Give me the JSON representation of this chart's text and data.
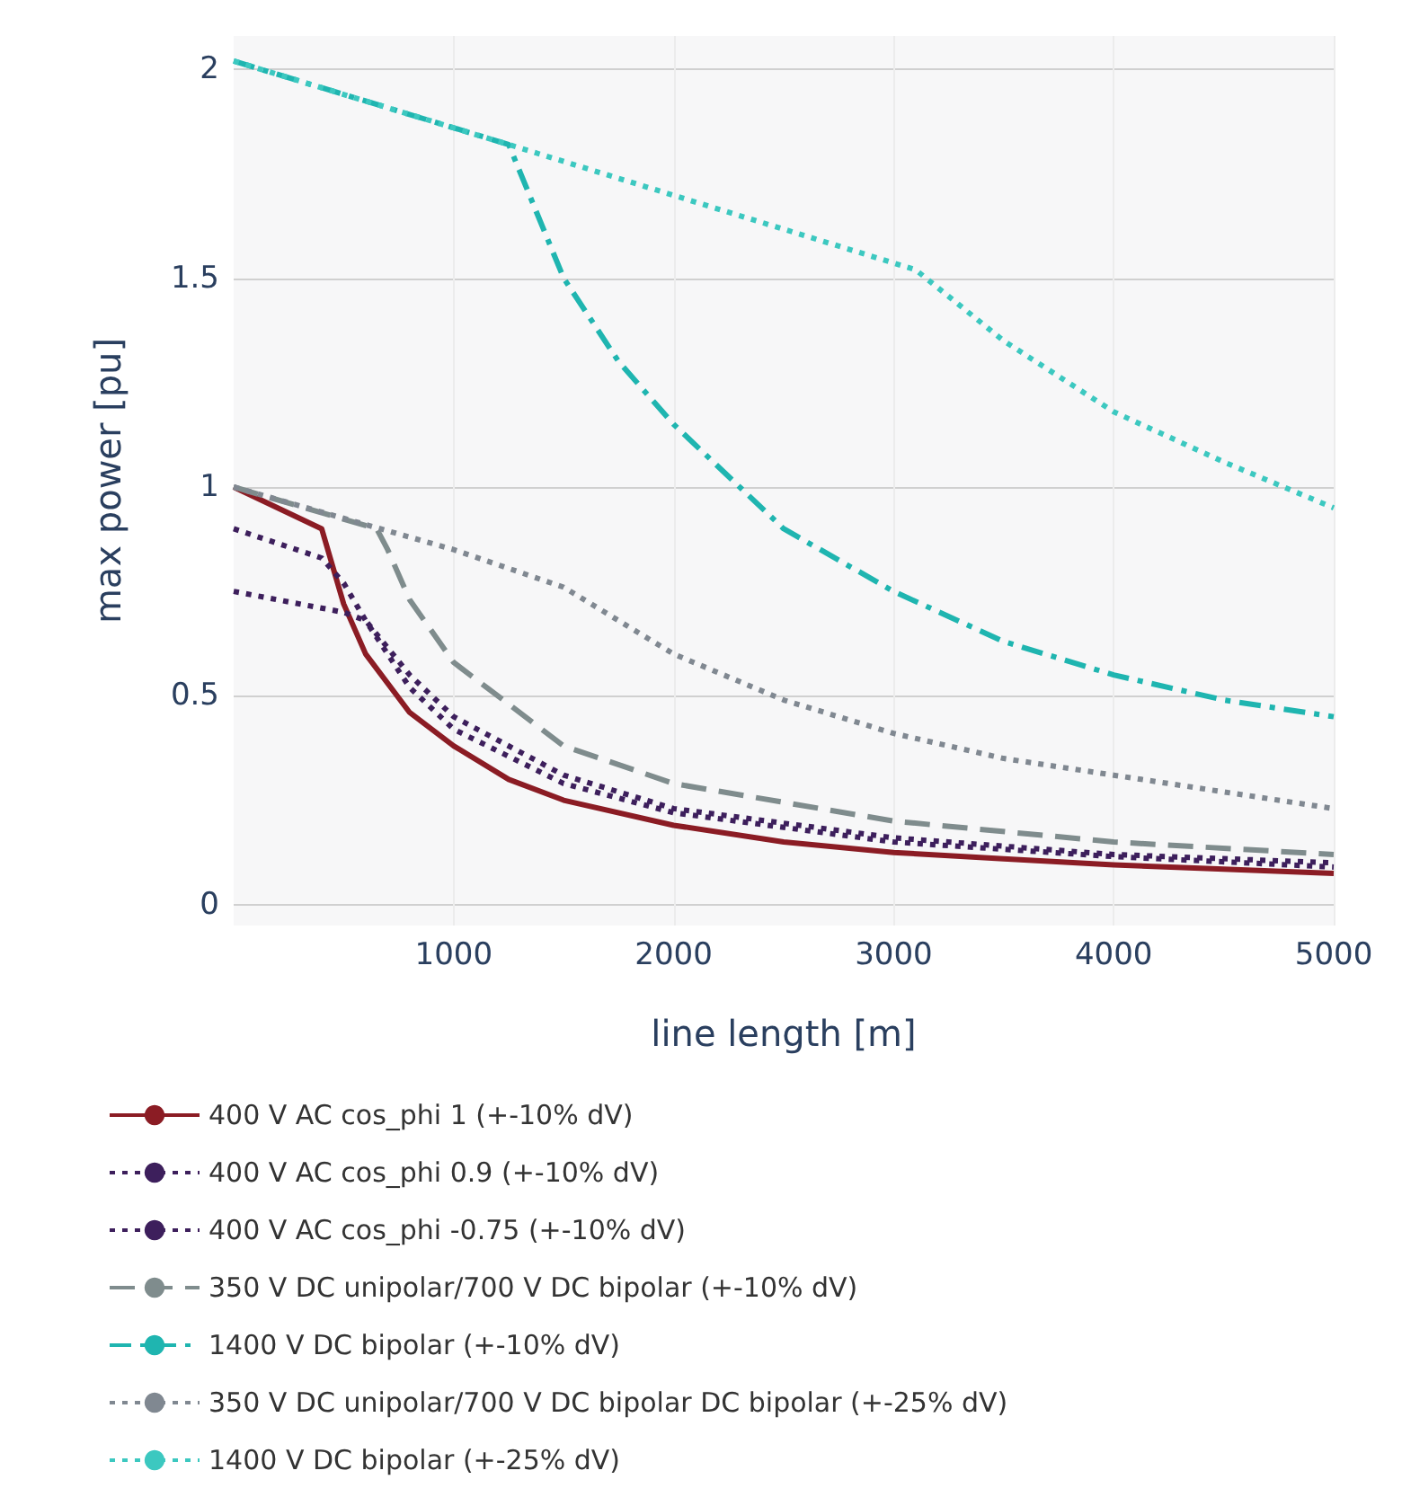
{
  "chart_data": {
    "type": "line",
    "xlabel": "line length [m]",
    "ylabel": "max power [pu]",
    "xlim": [
      0,
      5000
    ],
    "ylim": [
      -0.05,
      2.08
    ],
    "xticks": [
      1000,
      2000,
      3000,
      4000,
      5000
    ],
    "yticks": [
      0,
      0.5,
      1,
      1.5,
      2
    ],
    "grid": true,
    "legend": "bottom",
    "marker": "none",
    "series": [
      {
        "name": "400 V AC cos_phi 1 (+-10% dV)",
        "color": "#8b1c24",
        "line_style": "solid",
        "x": [
          0,
          200,
          400,
          500,
          600,
          800,
          1000,
          1250,
          1500,
          2000,
          2500,
          3000,
          3500,
          4000,
          4500,
          5000
        ],
        "values": [
          1,
          0.95,
          0.9,
          0.72,
          0.6,
          0.46,
          0.38,
          0.3,
          0.25,
          0.19,
          0.15,
          0.125,
          0.11,
          0.095,
          0.085,
          0.075
        ]
      },
      {
        "name": "400 V AC cos_phi 0.9 (+-10% dV)",
        "color": "#3d1f5c",
        "line_style": "dotted",
        "x": [
          0,
          400,
          500,
          600,
          800,
          1000,
          1500,
          2000,
          3000,
          4000,
          5000
        ],
        "values": [
          0.9,
          0.83,
          0.77,
          0.68,
          0.52,
          0.42,
          0.29,
          0.22,
          0.15,
          0.115,
          0.09
        ]
      },
      {
        "name": "400 V AC cos_phi -0.75 (+-10% dV)",
        "color": "#3d1f5c",
        "line_style": "dotted",
        "x": [
          0,
          500,
          600,
          800,
          1000,
          1500,
          2000,
          3000,
          4000,
          5000
        ],
        "values": [
          0.75,
          0.7,
          0.68,
          0.55,
          0.45,
          0.31,
          0.23,
          0.16,
          0.12,
          0.1
        ]
      },
      {
        "name": "350 V DC unipolar/700 V DC bipolar (+-10% dV)",
        "color": "#7f8c8d",
        "line_style": "dashed",
        "x": [
          0,
          650,
          700,
          800,
          1000,
          1500,
          2000,
          3000,
          4000,
          5000
        ],
        "values": [
          1,
          0.9,
          0.85,
          0.73,
          0.58,
          0.38,
          0.29,
          0.2,
          0.15,
          0.12
        ]
      },
      {
        "name": "1400 V DC bipolar (+-10% dV)",
        "color": "#1fb5b0",
        "line_style": "dashdot",
        "x": [
          0,
          1250,
          1500,
          1750,
          2000,
          2500,
          3000,
          3500,
          4000,
          4500,
          5000
        ],
        "values": [
          2.02,
          1.82,
          1.5,
          1.3,
          1.15,
          0.9,
          0.75,
          0.63,
          0.55,
          0.49,
          0.45
        ]
      },
      {
        "name": "350 V DC unipolar/700 V DC bipolar DC bipolar (+-25% dV)",
        "color": "#808891",
        "line_style": "dotted",
        "x": [
          0,
          1000,
          1500,
          2000,
          2500,
          3000,
          3500,
          4000,
          4500,
          5000
        ],
        "values": [
          1,
          0.85,
          0.76,
          0.6,
          0.49,
          0.41,
          0.35,
          0.31,
          0.27,
          0.23
        ]
      },
      {
        "name": "1400 V DC bipolar (+-25% dV)",
        "color": "#3cc8c0",
        "line_style": "dotted",
        "x": [
          0,
          1250,
          3100,
          3500,
          4000,
          4500,
          5000
        ],
        "values": [
          2.02,
          1.82,
          1.52,
          1.35,
          1.18,
          1.06,
          0.95
        ]
      }
    ]
  }
}
